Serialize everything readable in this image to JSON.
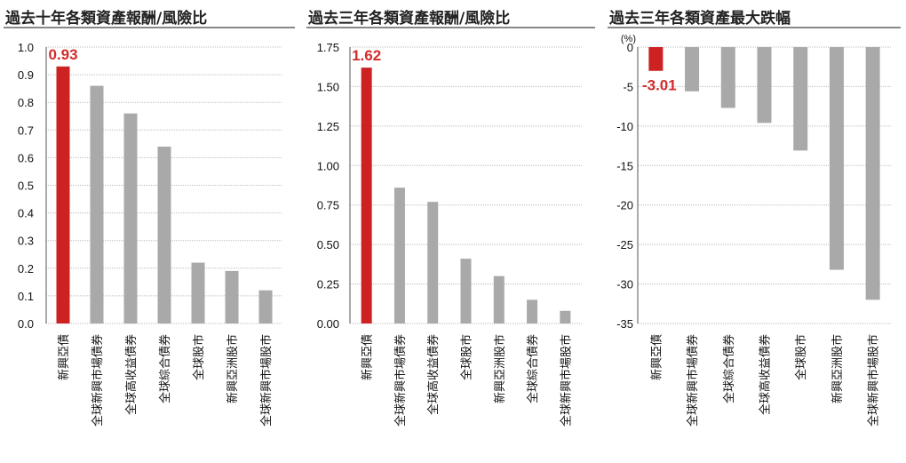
{
  "colors": {
    "highlight": "#cc2222",
    "bar": "#a9a9a9",
    "grid": "#bdbdbd",
    "label": "#d22c2c"
  },
  "chart_data": [
    {
      "type": "bar",
      "title": "過去十年各類資產報酬/風險比",
      "categories": [
        "新興亞債",
        "全球新興市場債券",
        "全球高收益債券",
        "全球綜合債券",
        "全球股市",
        "新興亞洲股市",
        "全球新興市場股市"
      ],
      "values": [
        0.93,
        0.86,
        0.76,
        0.64,
        0.22,
        0.19,
        0.12
      ],
      "highlight_index": 0,
      "highlight_label": "0.93",
      "ylim": [
        0,
        1.0
      ],
      "yticks": [
        "0.0",
        "0.1",
        "0.2",
        "0.3",
        "0.4",
        "0.5",
        "0.6",
        "0.7",
        "0.8",
        "0.9",
        "1.0"
      ],
      "grid": true,
      "unit": ""
    },
    {
      "type": "bar",
      "title": "過去三年各類資產報酬/風險比",
      "categories": [
        "新興亞債",
        "全球新興市場債券",
        "全球高收益債券",
        "全球股市",
        "新興亞洲股市",
        "全球綜合債券",
        "全球新興市場股市"
      ],
      "values": [
        1.62,
        0.86,
        0.77,
        0.41,
        0.3,
        0.15,
        0.08
      ],
      "highlight_index": 0,
      "highlight_label": "1.62",
      "ylim": [
        0,
        1.75
      ],
      "yticks": [
        "0.00",
        "0.25",
        "0.50",
        "0.75",
        "1.00",
        "1.25",
        "1.50",
        "1.75"
      ],
      "grid": true,
      "unit": ""
    },
    {
      "type": "bar",
      "title": "過去三年各類資產最大跌幅",
      "categories": [
        "新興亞債",
        "全球新興市場債券",
        "全球綜合債券",
        "全球高收益債券",
        "全球股市",
        "新興亞洲股市",
        "全球新興市場股市"
      ],
      "values": [
        -3.01,
        -5.6,
        -7.7,
        -9.6,
        -13.1,
        -28.2,
        -32.0
      ],
      "highlight_index": 0,
      "highlight_label": "-3.01",
      "ylim": [
        -35,
        0
      ],
      "yticks": [
        "0",
        "-5",
        "-10",
        "-15",
        "-20",
        "-25",
        "-30",
        "-35"
      ],
      "grid": true,
      "unit": "(%)"
    }
  ]
}
